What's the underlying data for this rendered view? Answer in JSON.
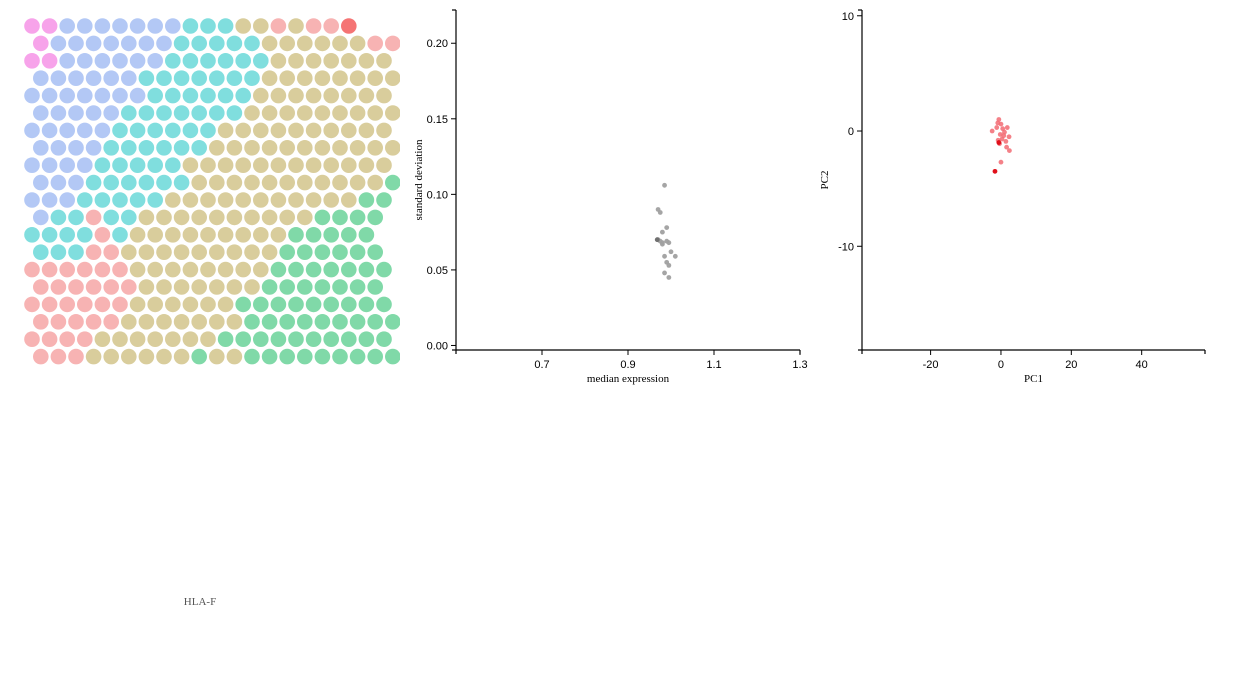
{
  "gene_label": "HLA-F",
  "colors": {
    "pink": "#f7a3ea",
    "blue": "#b3c8f5",
    "cyan": "#80dede",
    "tan": "#d9cd9c",
    "salmon": "#f7b3b3",
    "green": "#80d9a8",
    "red": "#f57474",
    "gray": "#a0a0a0",
    "darkgray": "#707070",
    "pca": "#f26b73",
    "pca_highlight": "#e0101a"
  },
  "chart_data": [
    {
      "type": "heatmap",
      "layout": "hexagonal grid",
      "grid": [
        "PPBBBBBBBCCCTTSTSSR",
        "PBBBBBBBCCCCCTTTTTTSS",
        "PPBBBBBBCCCCCCTTTTTTT",
        "BBBBBBCCCCCCCTTTTTTTT",
        "BBBBBBBCCCCCCTTTTTTTT",
        "BBBBBCCCCCCCTTTTTTTTT",
        "BBBBBCCCCCCTTTTTTTTTT",
        "BBBBCCCCCCTTTTTTTTTTT",
        "BBBBCCCCCTTTTTTTTTTTT",
        "BBBCCCCCCTTTTTTTTTTTG",
        "BBBCCCCCTTTTTTTTTTTGG",
        "BCCSCCTTTTTTTTTTGGGG",
        "CCCCSCTTTTTTTTTGGGGG",
        "CCCSSTTTTTTTTTGGGGGG",
        "SSSSSSTTTTTTTTGGGGGGG",
        "SSSSSSTTTTTTTGGGGGGG",
        "SSSSSSTTTTTTGGGGGGGGG",
        "SSSSSTTTTTTTGGGGGGGGG",
        "SSSSTTTTTTTGGGGGGGGGG",
        "SSSTTTTTTGTTGGGGGGGGG"
      ]
    },
    {
      "type": "scatter",
      "xlabel": "median expression",
      "ylabel": "standard deviation",
      "xlim": [
        0.5,
        1.3
      ],
      "ylim": [
        -0.003,
        0.222
      ],
      "xticks": [
        "0.7",
        "0.9",
        "1.1",
        "1.3"
      ],
      "yticks": [
        "0.00",
        "0.05",
        "0.10",
        "0.15",
        "0.20"
      ],
      "points": [
        [
          0.985,
          0.106
        ],
        [
          0.97,
          0.09
        ],
        [
          0.975,
          0.088
        ],
        [
          0.99,
          0.078
        ],
        [
          0.98,
          0.075
        ],
        [
          0.97,
          0.07
        ],
        [
          0.975,
          0.069
        ],
        [
          0.98,
          0.068
        ],
        [
          0.99,
          0.069
        ],
        [
          0.995,
          0.068
        ],
        [
          1.0,
          0.062
        ],
        [
          1.01,
          0.059
        ],
        [
          0.985,
          0.059
        ],
        [
          0.99,
          0.055
        ],
        [
          0.995,
          0.053
        ],
        [
          0.985,
          0.048
        ],
        [
          0.995,
          0.045
        ],
        [
          0.98,
          0.067
        ]
      ],
      "highlight": [
        [
          0.968,
          0.07
        ]
      ]
    },
    {
      "type": "scatter",
      "xlabel": "PC1",
      "ylabel": "PC2",
      "xlim": [
        -39.5,
        58
      ],
      "ylim": [
        -19,
        10.5
      ],
      "xticks": [
        "-20",
        "0",
        "20",
        "40"
      ],
      "yticks": [
        "-10",
        "0",
        "10"
      ],
      "points": [
        [
          -0.6,
          1.0
        ],
        [
          0.0,
          0.6
        ],
        [
          -1.2,
          0.3
        ],
        [
          0.5,
          0.2
        ],
        [
          1.8,
          0.3
        ],
        [
          -2.5,
          0.0
        ],
        [
          1.0,
          -0.1
        ],
        [
          -0.2,
          -0.3
        ],
        [
          2.3,
          -0.5
        ],
        [
          0.3,
          -0.7
        ],
        [
          -0.8,
          -0.8
        ],
        [
          1.4,
          -0.9
        ],
        [
          -0.4,
          -1.1
        ],
        [
          1.6,
          -1.4
        ],
        [
          2.4,
          -1.7
        ],
        [
          0.0,
          -2.7
        ],
        [
          -0.9,
          0.7
        ],
        [
          0.8,
          -0.4
        ]
      ],
      "highlight": [
        [
          -0.6,
          -1.0
        ],
        [
          -1.7,
          -3.5
        ]
      ]
    }
  ]
}
